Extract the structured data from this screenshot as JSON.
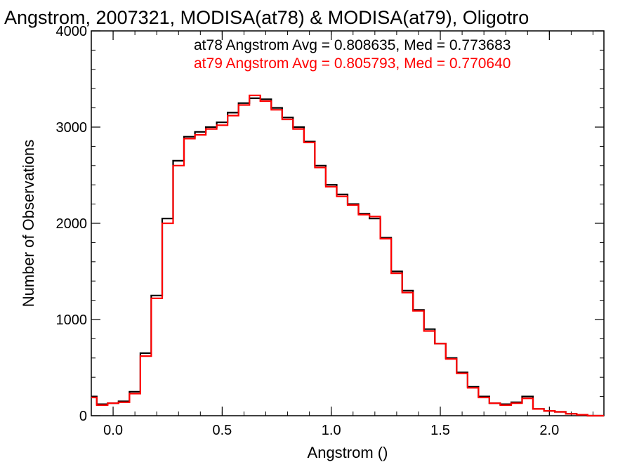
{
  "chart_data": {
    "type": "histogram",
    "title": "Angstrom, 2007321, MODISA(at78) & MODISA(at79), Oligotro",
    "xlabel": "Angstrom ()",
    "ylabel": "Number of Observations",
    "xlim": [
      -0.1,
      2.25
    ],
    "ylim": [
      0,
      4000
    ],
    "x_ticks": [
      0.0,
      0.5,
      1.0,
      1.5,
      2.0
    ],
    "x_tick_labels": [
      "0.0",
      "0.5",
      "1.0",
      "1.5",
      "2.0"
    ],
    "y_ticks": [
      0,
      1000,
      2000,
      3000,
      4000
    ],
    "y_tick_labels": [
      "0",
      "1000",
      "2000",
      "3000",
      "4000"
    ],
    "x_minor_step": 0.1,
    "y_minor_step": 200,
    "grid": false,
    "legend_position": "top-right",
    "annotations": [
      {
        "text": "at78 Angstrom Avg = 0.808635, Med = 0.773683",
        "color": "#000000"
      },
      {
        "text": "at79 Angstrom Avg = 0.805793, Med = 0.770640",
        "color": "#ff0000"
      }
    ],
    "x": [
      -0.1,
      -0.05,
      0.0,
      0.05,
      0.1,
      0.15,
      0.2,
      0.25,
      0.3,
      0.35,
      0.4,
      0.45,
      0.5,
      0.55,
      0.6,
      0.65,
      0.7,
      0.75,
      0.8,
      0.85,
      0.9,
      0.95,
      1.0,
      1.05,
      1.1,
      1.15,
      1.2,
      1.25,
      1.3,
      1.35,
      1.4,
      1.45,
      1.5,
      1.55,
      1.6,
      1.65,
      1.7,
      1.75,
      1.8,
      1.85,
      1.9,
      1.95,
      2.0,
      2.05,
      2.1,
      2.15,
      2.2,
      2.25
    ],
    "series": [
      {
        "name": "at78",
        "color": "#000000",
        "values": [
          200,
          120,
          130,
          150,
          250,
          650,
          1250,
          2050,
          2650,
          2900,
          2950,
          3000,
          3050,
          3150,
          3250,
          3300,
          3290,
          3200,
          3100,
          3000,
          2850,
          2600,
          2400,
          2300,
          2200,
          2100,
          2050,
          1850,
          1500,
          1300,
          1100,
          900,
          750,
          600,
          450,
          300,
          200,
          130,
          120,
          140,
          200,
          70,
          50,
          40,
          20,
          10,
          0,
          0
        ]
      },
      {
        "name": "at79",
        "color": "#ff0000",
        "values": [
          190,
          110,
          130,
          140,
          230,
          620,
          1220,
          2000,
          2600,
          2880,
          2920,
          2980,
          3020,
          3120,
          3230,
          3330,
          3270,
          3180,
          3080,
          2980,
          2840,
          2580,
          2380,
          2280,
          2190,
          2090,
          2070,
          1840,
          1480,
          1280,
          1090,
          880,
          750,
          590,
          440,
          290,
          190,
          130,
          110,
          130,
          180,
          70,
          50,
          40,
          20,
          10,
          0,
          0
        ]
      }
    ]
  }
}
